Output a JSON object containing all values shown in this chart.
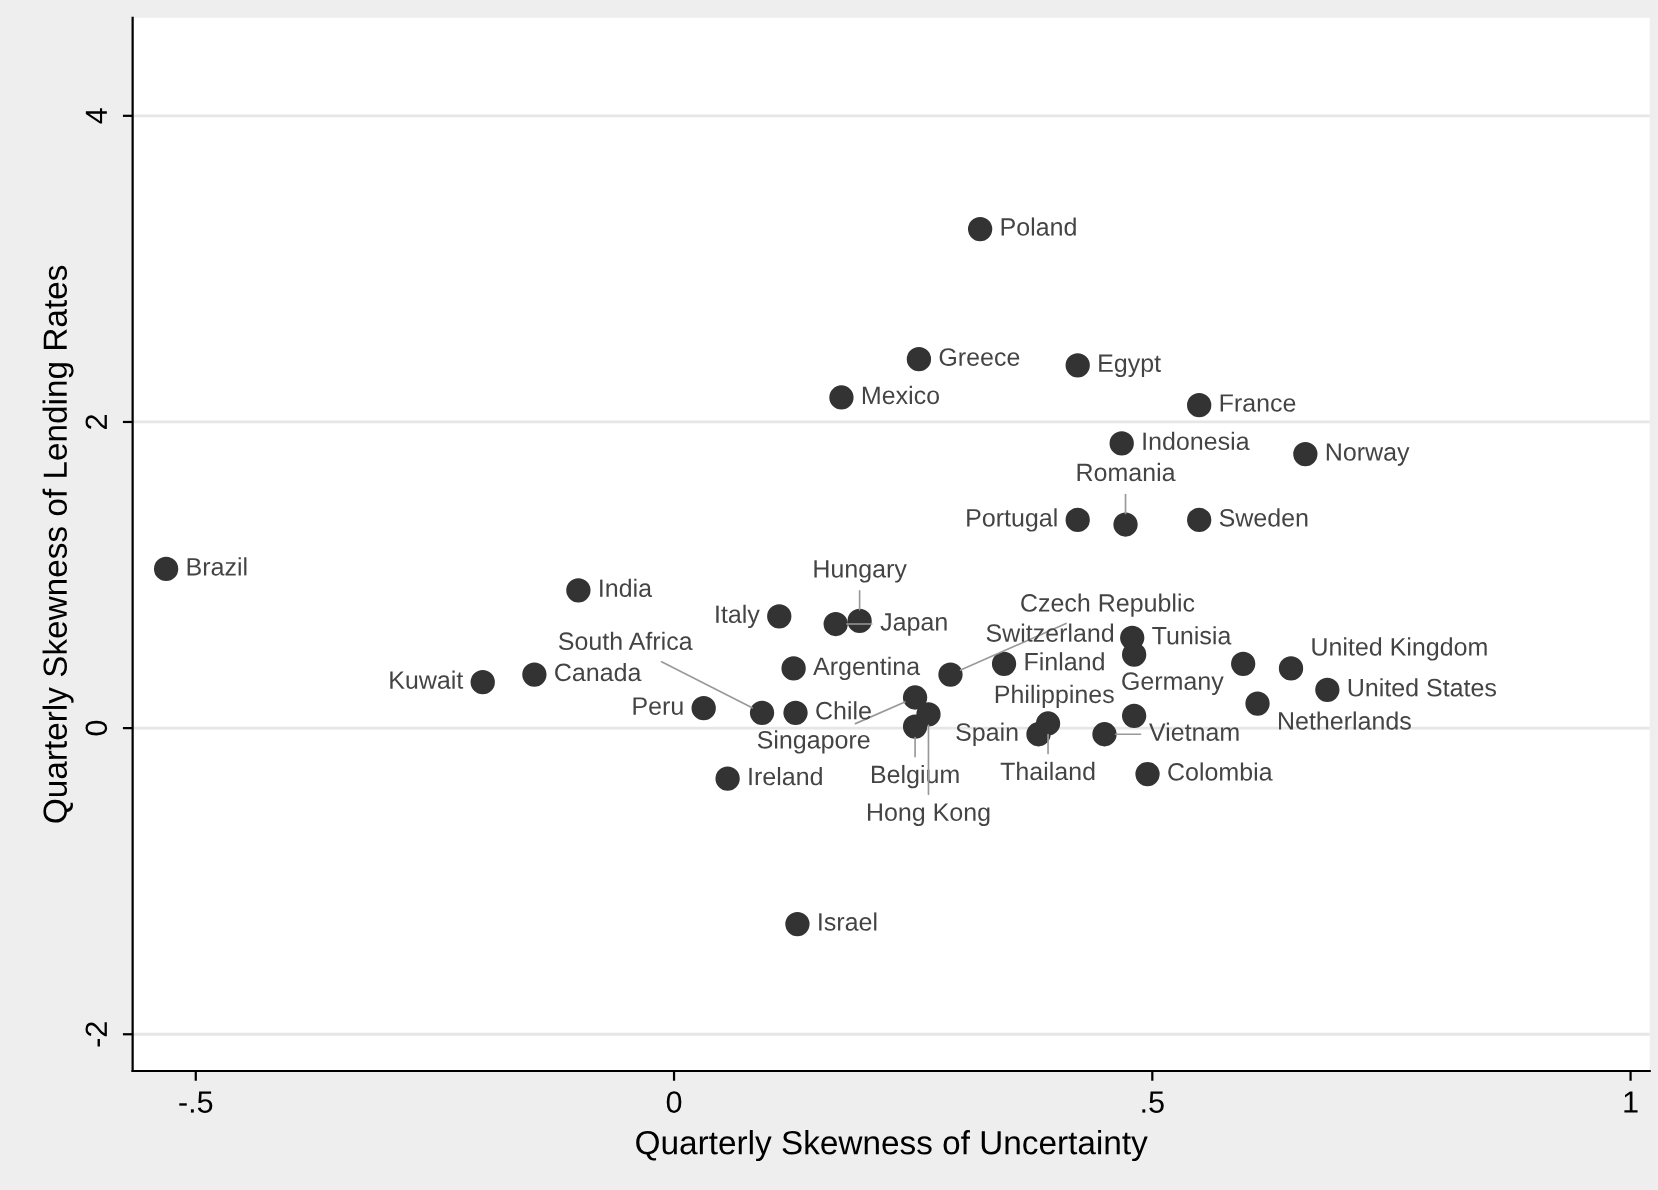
{
  "chart_data": {
    "type": "scatter",
    "xlabel": "Quarterly Skewness of Uncertainty",
    "ylabel": "Quarterly Skewness of Lending Rates",
    "x": [
      -0.531,
      -0.1,
      -0.2,
      -0.146,
      0.32,
      0.256,
      0.422,
      0.175,
      0.549,
      0.468,
      0.66,
      0.422,
      0.472,
      0.549,
      0.11,
      0.169,
      0.194,
      0.125,
      0.289,
      0.345,
      0.479,
      0.481,
      0.595,
      0.645,
      0.683,
      0.61,
      0.481,
      0.381,
      0.391,
      0.45,
      0.252,
      0.252,
      0.266,
      0.031,
      0.092,
      0.127,
      0.056,
      0.129,
      0.495
    ],
    "series": [
      {
        "color": "#333333",
        "values": [
          1.04,
          0.9,
          0.3,
          0.35,
          3.26,
          2.41,
          2.37,
          2.16,
          2.11,
          1.86,
          1.79,
          1.36,
          1.33,
          1.36,
          0.73,
          0.68,
          0.7,
          0.39,
          0.35,
          0.42,
          0.59,
          0.48,
          0.42,
          0.39,
          0.25,
          0.16,
          0.08,
          -0.04,
          0.03,
          -0.04,
          0.2,
          0.01,
          0.09,
          0.13,
          0.1,
          0.1,
          -0.33,
          -1.28,
          -0.3
        ]
      }
    ],
    "annotations": [
      {
        "text": "Brazil",
        "x": -0.531,
        "y": 1.04
      },
      {
        "text": "India",
        "x": -0.1,
        "y": 0.9
      },
      {
        "text": "Kuwait",
        "x": -0.2,
        "y": 0.3
      },
      {
        "text": "Canada",
        "x": -0.146,
        "y": 0.35
      },
      {
        "text": "Poland",
        "x": 0.32,
        "y": 3.26
      },
      {
        "text": "Greece",
        "x": 0.256,
        "y": 2.41
      },
      {
        "text": "Egypt",
        "x": 0.422,
        "y": 2.37
      },
      {
        "text": "Mexico",
        "x": 0.175,
        "y": 2.16
      },
      {
        "text": "France",
        "x": 0.549,
        "y": 2.11
      },
      {
        "text": "Indonesia",
        "x": 0.468,
        "y": 1.86
      },
      {
        "text": "Norway",
        "x": 0.66,
        "y": 1.79
      },
      {
        "text": "Portugal",
        "x": 0.422,
        "y": 1.36
      },
      {
        "text": "Romania",
        "x": 0.472,
        "y": 1.33
      },
      {
        "text": "Sweden",
        "x": 0.549,
        "y": 1.36
      },
      {
        "text": "Italy",
        "x": 0.11,
        "y": 0.73
      },
      {
        "text": "Japan",
        "x": 0.169,
        "y": 0.68
      },
      {
        "text": "Hungary",
        "x": 0.194,
        "y": 0.7
      },
      {
        "text": "Argentina",
        "x": 0.125,
        "y": 0.39
      },
      {
        "text": "Czech Republic",
        "x": 0.289,
        "y": 0.35
      },
      {
        "text": "Finland",
        "x": 0.345,
        "y": 0.42
      },
      {
        "text": "Tunisia",
        "x": 0.479,
        "y": 0.59
      },
      {
        "text": "Switzerland",
        "x": 0.481,
        "y": 0.48
      },
      {
        "text": "Germany",
        "x": 0.595,
        "y": 0.42
      },
      {
        "text": "United Kingdom",
        "x": 0.645,
        "y": 0.39
      },
      {
        "text": "United States",
        "x": 0.683,
        "y": 0.25
      },
      {
        "text": "Netherlands",
        "x": 0.61,
        "y": 0.16
      },
      {
        "text": "Philippines",
        "x": 0.481,
        "y": 0.08
      },
      {
        "text": "Spain",
        "x": 0.381,
        "y": -0.04
      },
      {
        "text": "Thailand",
        "x": 0.391,
        "y": 0.03
      },
      {
        "text": "Vietnam",
        "x": 0.45,
        "y": -0.04
      },
      {
        "text": "Singapore",
        "x": 0.252,
        "y": 0.2
      },
      {
        "text": "Belgium",
        "x": 0.252,
        "y": 0.01
      },
      {
        "text": "Hong Kong",
        "x": 0.266,
        "y": 0.09
      },
      {
        "text": "Peru",
        "x": 0.031,
        "y": 0.13
      },
      {
        "text": "South Africa",
        "x": 0.092,
        "y": 0.1
      },
      {
        "text": "Chile",
        "x": 0.127,
        "y": 0.1
      },
      {
        "text": "Ireland",
        "x": 0.056,
        "y": -0.33
      },
      {
        "text": "Israel",
        "x": 0.129,
        "y": -1.28
      },
      {
        "text": "Colombia",
        "x": 0.495,
        "y": -0.3
      }
    ],
    "xlim": [
      -0.566,
      1.02
    ],
    "ylim": [
      -2.24,
      4.64
    ],
    "xticks": [
      {
        "value": -0.5,
        "label": "-.5"
      },
      0,
      {
        "value": 0.5,
        "label": ".5"
      },
      1
    ],
    "yticks": [
      -2,
      0,
      2,
      4
    ],
    "grid": "y",
    "marker": "circle"
  }
}
